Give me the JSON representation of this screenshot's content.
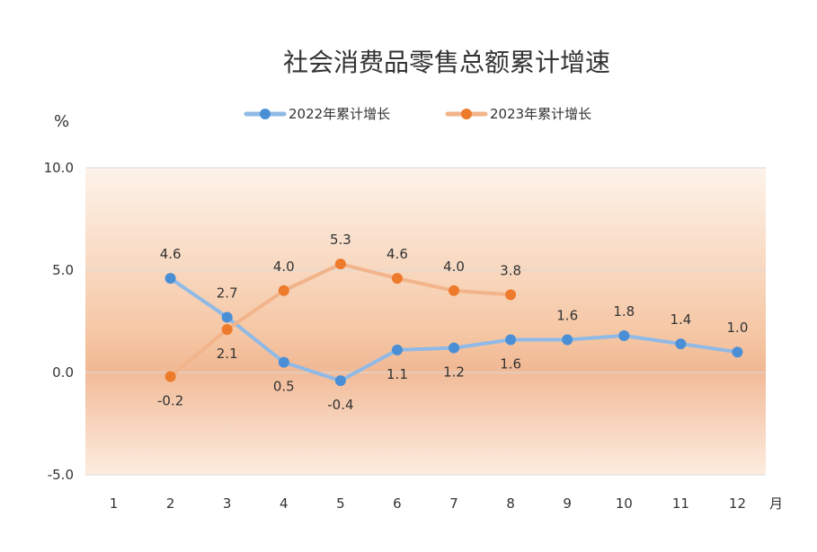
{
  "chart_data": {
    "type": "line",
    "title": "社会消费品零售总额累计增速",
    "ylabel": "%",
    "xlabel": "月",
    "categories": [
      "1",
      "2",
      "3",
      "4",
      "5",
      "6",
      "7",
      "8",
      "9",
      "10",
      "11",
      "12"
    ],
    "ylim": [
      -5.0,
      10.0
    ],
    "yticks": [
      "10.0",
      "5.0",
      "0.0",
      "-5.0"
    ],
    "grid": true,
    "legend": "top-center",
    "series": [
      {
        "name": "2022年累计增长",
        "color": "#8fb9e6",
        "marker_color": "#4a8fd6",
        "values": [
          null,
          4.6,
          2.7,
          0.5,
          -0.4,
          1.1,
          1.2,
          1.6,
          1.6,
          1.8,
          1.4,
          1.0
        ],
        "labels": [
          "",
          "4.6",
          "2.7",
          "0.5",
          "-0.4",
          "1.1",
          "1.2",
          "1.6",
          "1.6",
          "1.8",
          "1.4",
          "1.0"
        ]
      },
      {
        "name": "2023年累计增长",
        "color": "#f2b48a",
        "marker_color": "#ee7a2c",
        "values": [
          null,
          -0.2,
          2.1,
          4.0,
          5.3,
          4.6,
          4.0,
          3.8,
          null,
          null,
          null,
          null
        ],
        "labels": [
          "",
          "-0.2",
          "2.1",
          "4.0",
          "5.3",
          "4.6",
          "4.0",
          "3.8",
          "",
          "",
          "",
          ""
        ]
      }
    ]
  }
}
